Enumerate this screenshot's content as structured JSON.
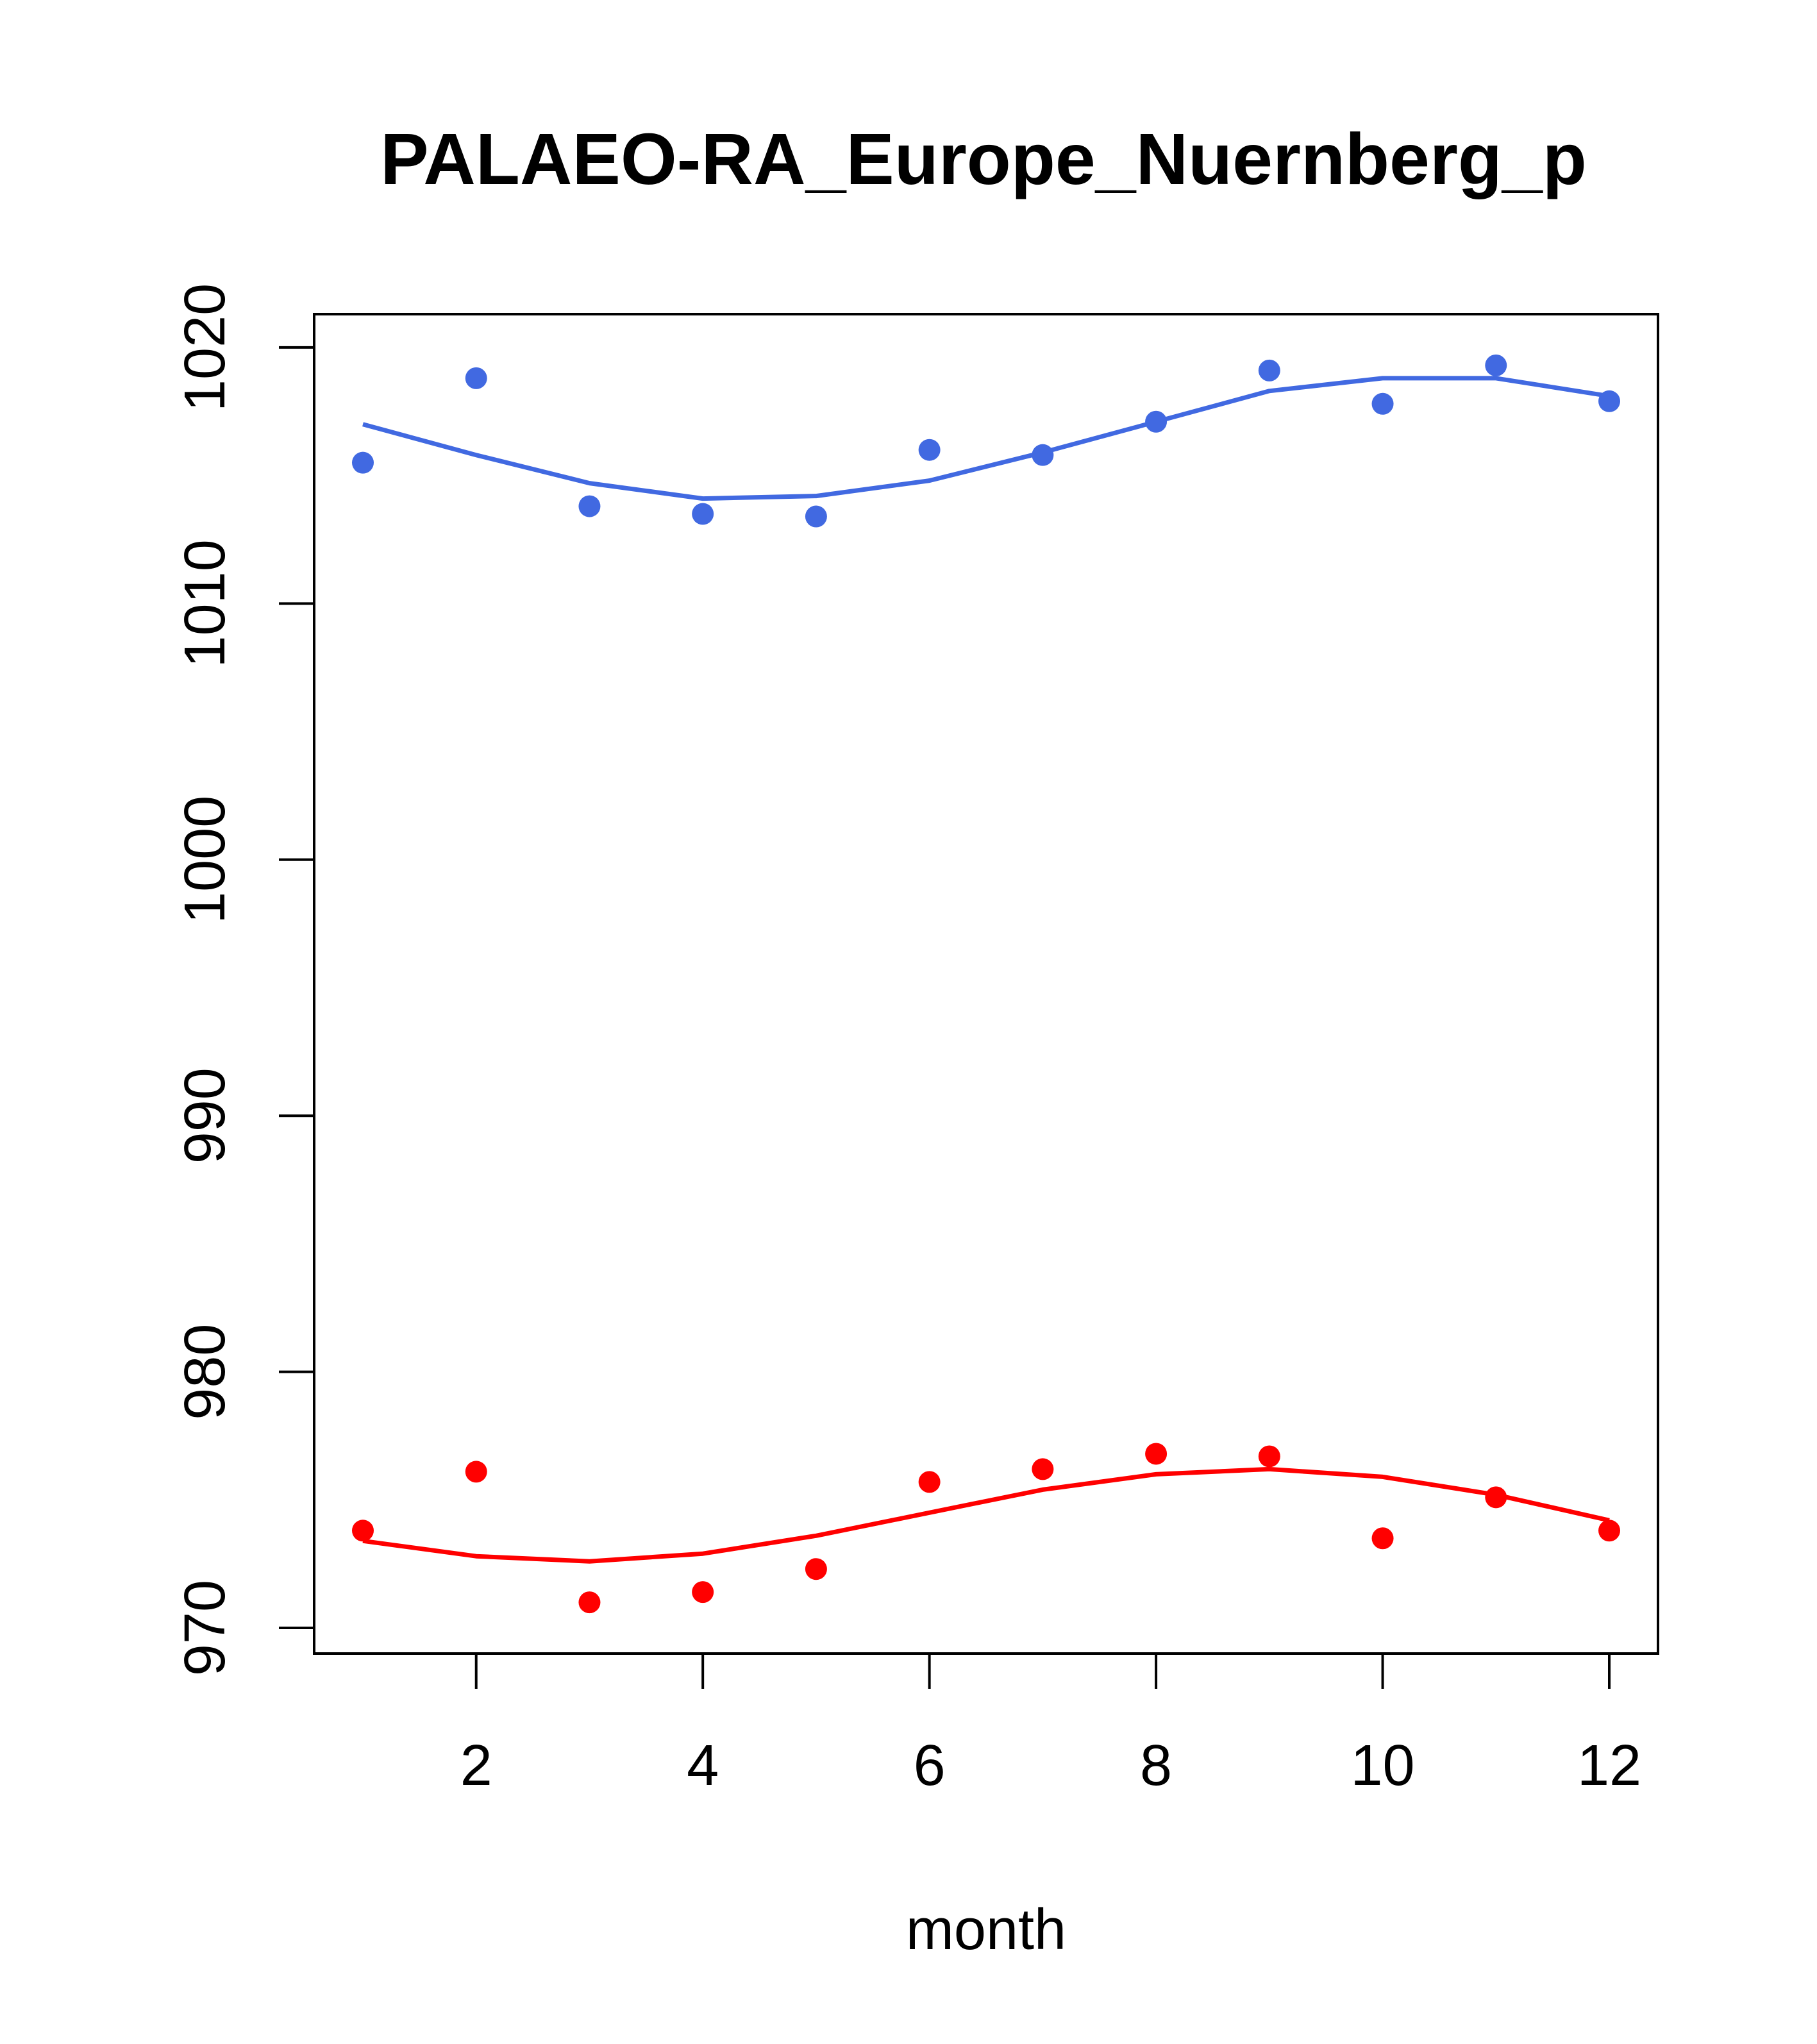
{
  "chart_data": {
    "type": "scatter",
    "title": "PALAEO-RA_Europe_Nuernberg_p",
    "xlabel": "month",
    "ylabel": "",
    "xlim": [
      0.57,
      12.43
    ],
    "ylim": [
      969,
      1021.3
    ],
    "x_ticks": [
      2,
      4,
      6,
      8,
      10,
      12
    ],
    "x_tick_labels": [
      "2",
      "4",
      "6",
      "8",
      "10",
      "12"
    ],
    "y_ticks": [
      970,
      980,
      990,
      1000,
      1010,
      1020
    ],
    "y_tick_labels": [
      "970",
      "980",
      "990",
      "1000",
      "1010",
      "1020"
    ],
    "grid": false,
    "legend": "none",
    "series": [
      {
        "color": "#4169E1",
        "points": {
          "x": [
            1,
            2,
            3,
            4,
            5,
            6,
            7,
            8,
            9,
            10,
            11,
            12
          ],
          "y": [
            1015.5,
            1018.8,
            1013.8,
            1013.5,
            1013.4,
            1016.0,
            1015.8,
            1017.1,
            1019.1,
            1017.8,
            1019.3,
            1017.9
          ]
        },
        "line": {
          "x": [
            1,
            2,
            3,
            4,
            5,
            6,
            7,
            8,
            9,
            10,
            11,
            12
          ],
          "y": [
            1017.0,
            1015.8,
            1014.7,
            1014.1,
            1014.2,
            1014.8,
            1015.9,
            1017.1,
            1018.3,
            1018.8,
            1018.8,
            1018.1
          ]
        }
      },
      {
        "color": "#FF0000",
        "points": {
          "x": [
            1,
            2,
            3,
            4,
            5,
            6,
            7,
            8,
            9,
            10,
            11,
            12
          ],
          "y": [
            973.8,
            976.1,
            971.0,
            971.4,
            972.3,
            975.7,
            976.2,
            976.8,
            976.7,
            973.5,
            975.1,
            973.8
          ]
        },
        "line": {
          "x": [
            1,
            2,
            3,
            4,
            5,
            6,
            7,
            8,
            9,
            10,
            11,
            12
          ],
          "y": [
            973.4,
            972.8,
            972.6,
            972.9,
            973.6,
            974.5,
            975.4,
            976.0,
            976.2,
            975.9,
            975.2,
            974.2
          ]
        }
      }
    ]
  }
}
